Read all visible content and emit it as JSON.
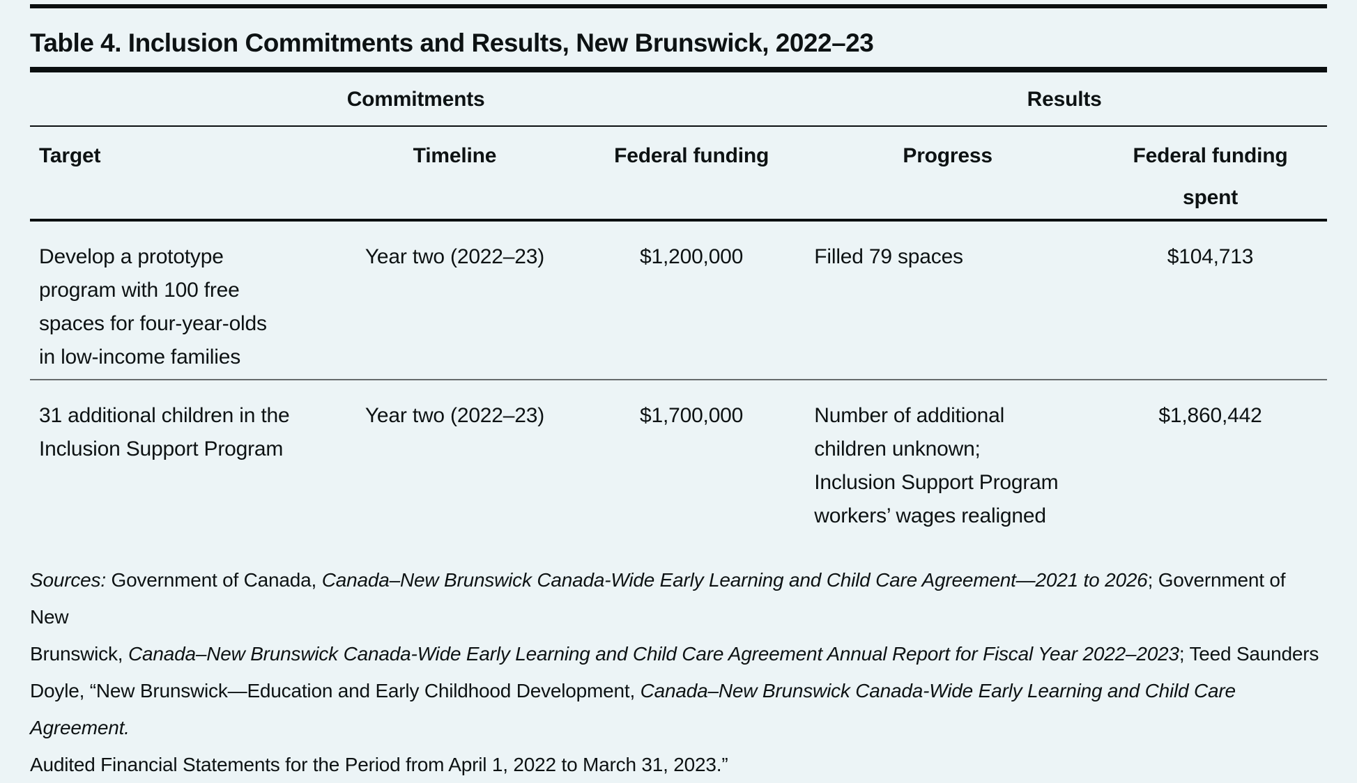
{
  "colors": {
    "background": "#ecf4f6",
    "text": "#0d1213",
    "heavy_rule": "#0b0f10",
    "row_divider": "#666b6c"
  },
  "title": "Table 4. Inclusion Commitments and Results, New Brunswick, 2022–23",
  "table": {
    "group_headers": [
      {
        "label": "Commitments",
        "span": 3
      },
      {
        "label": "Results",
        "span": 2
      }
    ],
    "columns": [
      {
        "label": "Target"
      },
      {
        "label": "Timeline"
      },
      {
        "label": "Federal funding"
      },
      {
        "label": "Progress"
      },
      {
        "label": "Federal funding\nspent"
      }
    ],
    "rows": [
      {
        "target": "Develop a prototype\nprogram with 100 free\nspaces for four-year-olds\nin low-income families",
        "timeline": "Year two (2022–23)",
        "federal_funding": "$1,200,000",
        "progress": "Filled 79 spaces",
        "federal_funding_spent": "$104,713"
      },
      {
        "target": "31 additional children in the\nInclusion Support Program",
        "timeline": "Year two (2022–23)",
        "federal_funding": "$1,700,000",
        "progress": "Number of additional\nchildren unknown;\nInclusion Support Program\nworkers’ wages realigned",
        "federal_funding_spent": "$1,860,442"
      }
    ]
  },
  "sources": {
    "lines": [
      {
        "segments": [
          {
            "text": "Sources:",
            "italic": true
          },
          {
            "text": " Government of Canada, ",
            "italic": false
          },
          {
            "text": "Canada–New Brunswick Canada-Wide Early Learning and Child Care Agreement—2021 to 2026",
            "italic": true
          },
          {
            "text": "; Government of New",
            "italic": false
          }
        ]
      },
      {
        "segments": [
          {
            "text": "Brunswick, ",
            "italic": false
          },
          {
            "text": "Canada–New Brunswick Canada-Wide Early Learning and Child Care Agreement Annual Report for Fiscal Year 2022–2023",
            "italic": true
          },
          {
            "text": "; Teed Saunders",
            "italic": false
          }
        ]
      },
      {
        "segments": [
          {
            "text": "Doyle, “New Brunswick—Education and Early Childhood Development, ",
            "italic": false
          },
          {
            "text": "Canada–New Brunswick Canada-Wide Early Learning and Child Care Agreement.",
            "italic": true
          }
        ]
      },
      {
        "segments": [
          {
            "text": "Audited Financial Statements for the Period from April 1, 2022 to March 31, 2023.”",
            "italic": false
          }
        ]
      }
    ]
  }
}
